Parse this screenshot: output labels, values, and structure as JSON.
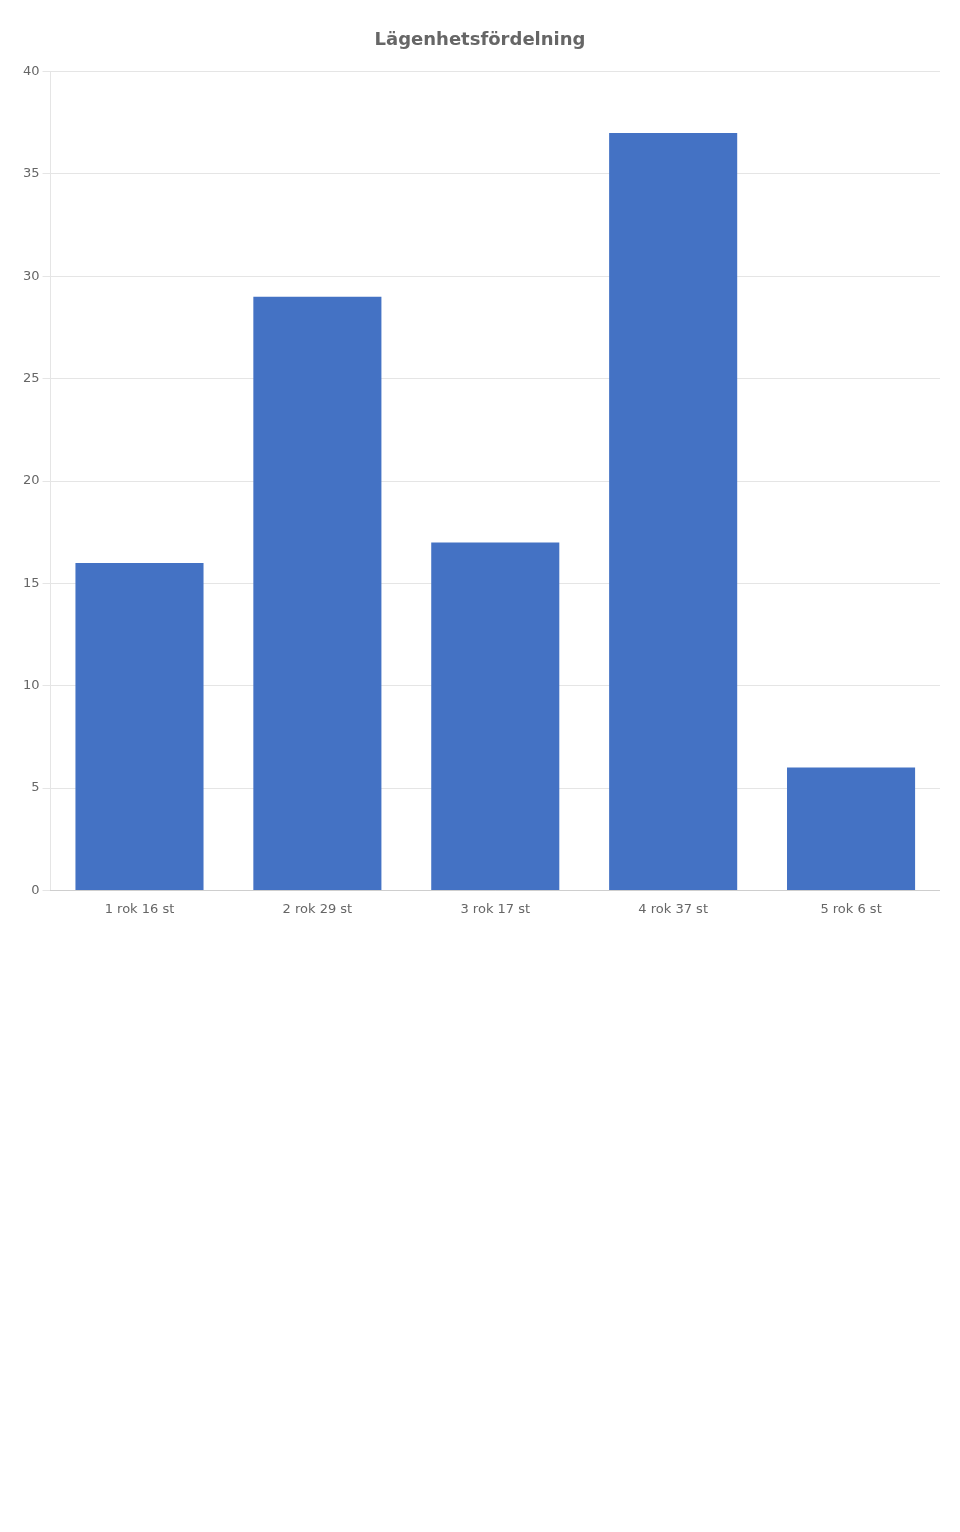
{
  "chart_data": {
    "type": "bar",
    "title": "Lägenhetsfördelning",
    "categories": [
      "1 rok 16 st",
      "2 rok 29 st",
      "3 rok 17 st",
      "4 rok 37 st",
      "5 rok 6 st"
    ],
    "values": [
      16,
      29,
      17,
      37,
      6
    ],
    "color": "#4472C4",
    "ylim": [
      0,
      40
    ],
    "yticks": [
      0,
      5,
      10,
      15,
      20,
      25,
      30,
      35,
      40
    ],
    "grid": true
  }
}
